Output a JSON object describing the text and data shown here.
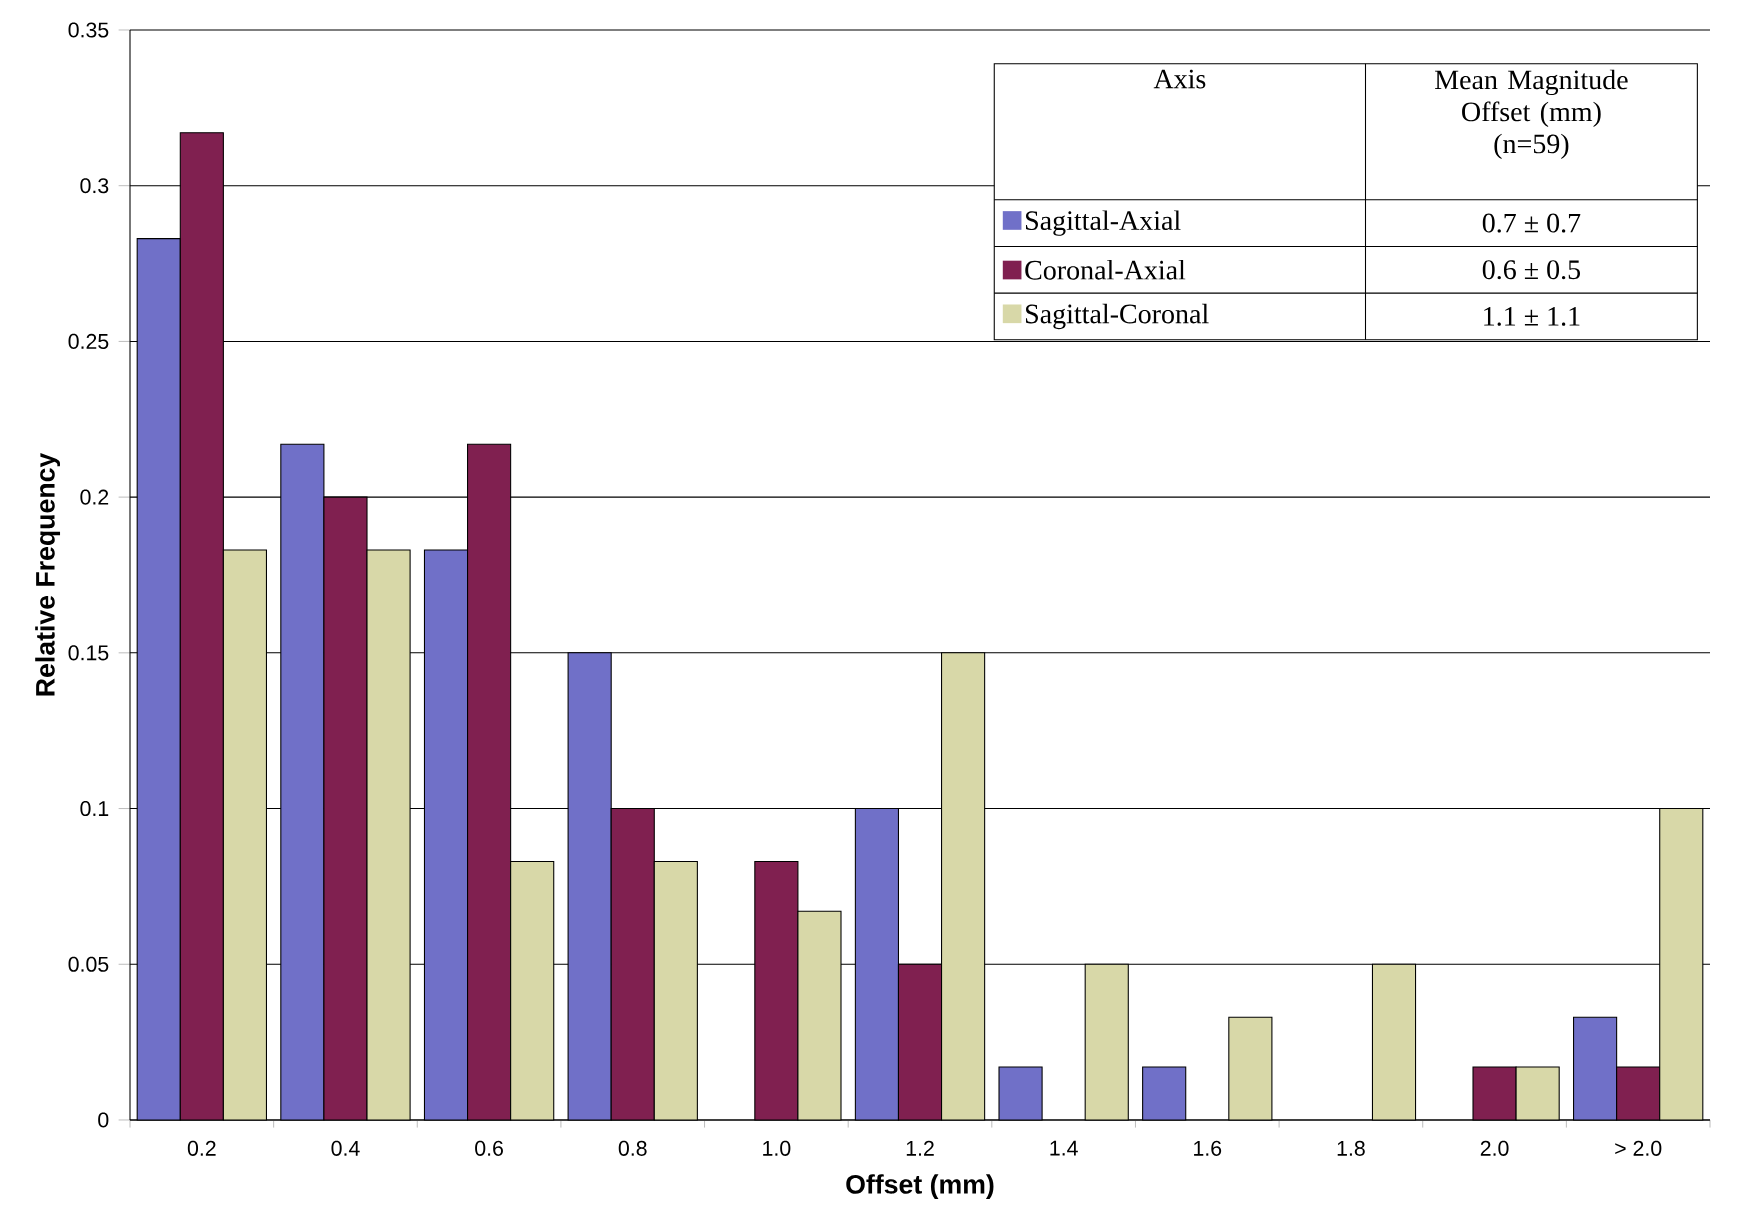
{
  "chart_data": {
    "type": "bar",
    "xlabel": "Offset (mm)",
    "ylabel": "Relative Frequency",
    "categories": [
      "0.2",
      "0.4",
      "0.6",
      "0.8",
      "1.0",
      "1.2",
      "1.4",
      "1.6",
      "1.8",
      "2.0",
      "> 2.0"
    ],
    "series": [
      {
        "name": "Sagittal-Axial",
        "color": "#7070c8",
        "values": [
          0.283,
          0.217,
          0.183,
          0.15,
          null,
          0.1,
          0.017,
          0.017,
          null,
          null,
          0.033
        ]
      },
      {
        "name": "Coronal-Axial",
        "color": "#802050",
        "values": [
          0.317,
          0.2,
          0.217,
          0.1,
          0.083,
          0.05,
          null,
          null,
          null,
          0.017,
          0.017
        ]
      },
      {
        "name": "Sagittal-Coronal",
        "color": "#d8d8a8",
        "values": [
          0.183,
          0.183,
          0.083,
          0.083,
          0.067,
          0.15,
          0.05,
          0.033,
          0.05,
          0.017,
          0.1
        ]
      }
    ],
    "ylim": [
      0,
      0.35
    ],
    "yticks": [
      0,
      0.05,
      0.1,
      0.15,
      0.2,
      0.25,
      0.3,
      0.35
    ],
    "grid": "y",
    "legend": "top right",
    "annotations": [
      "Axis",
      "Mean Magnitude Offset (mm) (n=59)",
      "0.7 ± 0.7",
      "0.6 ± 0.5",
      "1.1 ± 1.1"
    ]
  }
}
